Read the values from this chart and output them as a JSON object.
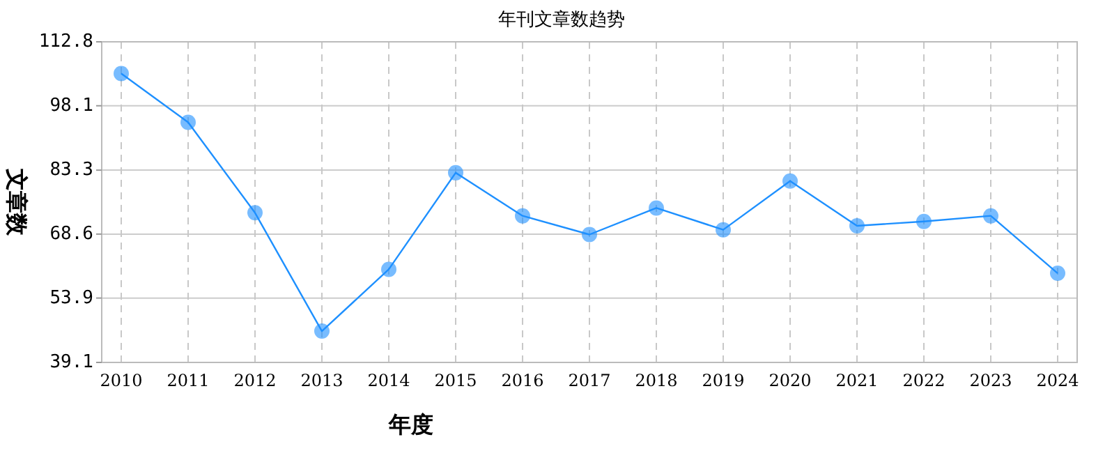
{
  "chart_data": {
    "type": "line",
    "title": "年刊文章数趋势",
    "xlabel": "年度",
    "ylabel": "文章数",
    "categories": [
      "2010",
      "2011",
      "2012",
      "2013",
      "2014",
      "2015",
      "2016",
      "2017",
      "2018",
      "2019",
      "2020",
      "2021",
      "2022",
      "2023",
      "2024"
    ],
    "series": [
      {
        "color": "#1e90ff",
        "values": [
          105.5,
          94.3,
          73.5,
          46.3,
          60.5,
          82.7,
          72.8,
          68.5,
          74.6,
          69.6,
          80.8,
          70.5,
          71.5,
          72.8,
          59.6
        ]
      }
    ],
    "ylim": [
      39.1,
      112.8
    ],
    "yticks": [
      39.1,
      53.9,
      68.6,
      83.3,
      98.1,
      112.8
    ],
    "grid": true,
    "marker": "circle",
    "line_style": "solid"
  }
}
